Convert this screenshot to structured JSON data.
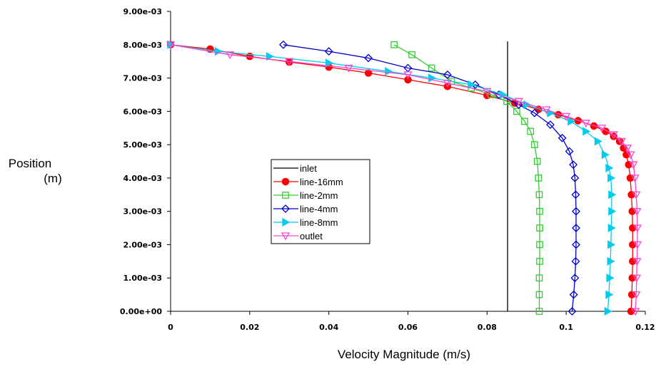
{
  "chart_data": {
    "type": "line",
    "xlabel": "Velocity Magnitude (m/s)",
    "ylabel_line1": "Position",
    "ylabel_line2": "(m)",
    "xlim": [
      0,
      0.12
    ],
    "ylim": [
      0,
      0.009
    ],
    "x_ticks": [
      0,
      0.02,
      0.04,
      0.06,
      0.08,
      0.1,
      0.12
    ],
    "x_tick_labels": [
      "0",
      "0.02",
      "0.04",
      "0.06",
      "0.08",
      "0.1",
      "0.12"
    ],
    "y_ticks": [
      0,
      0.001,
      0.002,
      0.003,
      0.004,
      0.005,
      0.006,
      0.007,
      0.008,
      0.009
    ],
    "y_tick_labels": [
      "0.00e+00",
      "1.00e-03",
      "2.00e-03",
      "3.00e-03",
      "4.00e-03",
      "5.00e-03",
      "6.00e-03",
      "7.00e-03",
      "8.00e-03",
      "9.00e-03"
    ],
    "grid": false,
    "legend_position": "center",
    "series": [
      {
        "name": "inlet",
        "color": "#000000",
        "marker": "none",
        "points": [
          [
            0.0852,
            0
          ],
          [
            0.0852,
            0.0081
          ]
        ]
      },
      {
        "name": "line-16mm",
        "color": "#ff0000",
        "marker": "circle",
        "points": [
          [
            0.0,
            0.008
          ],
          [
            0.01,
            0.00787
          ],
          [
            0.02,
            0.00765
          ],
          [
            0.03,
            0.00748
          ],
          [
            0.04,
            0.00733
          ],
          [
            0.05,
            0.00715
          ],
          [
            0.06,
            0.00695
          ],
          [
            0.07,
            0.00675
          ],
          [
            0.08,
            0.00648
          ],
          [
            0.087,
            0.00625
          ],
          [
            0.093,
            0.00606
          ],
          [
            0.098,
            0.0059
          ],
          [
            0.103,
            0.00572
          ],
          [
            0.107,
            0.00556
          ],
          [
            0.11,
            0.0054
          ],
          [
            0.112,
            0.00525
          ],
          [
            0.1135,
            0.0051
          ],
          [
            0.1145,
            0.0049
          ],
          [
            0.1152,
            0.0047
          ],
          [
            0.1158,
            0.0044
          ],
          [
            0.1162,
            0.004
          ],
          [
            0.1165,
            0.0035
          ],
          [
            0.1167,
            0.003
          ],
          [
            0.1168,
            0.0025
          ],
          [
            0.1168,
            0.002
          ],
          [
            0.1168,
            0.0015
          ],
          [
            0.1167,
            0.001
          ],
          [
            0.1166,
            0.0005
          ],
          [
            0.1164,
            0.0
          ]
        ]
      },
      {
        "name": "line-2mm",
        "color": "#33cc33",
        "marker": "square",
        "points": [
          [
            0.0565,
            0.008
          ],
          [
            0.061,
            0.0077
          ],
          [
            0.066,
            0.0073
          ],
          [
            0.071,
            0.0069
          ],
          [
            0.076,
            0.0067
          ],
          [
            0.081,
            0.0065
          ],
          [
            0.085,
            0.0063
          ],
          [
            0.0875,
            0.006
          ],
          [
            0.0895,
            0.0057
          ],
          [
            0.091,
            0.0054
          ],
          [
            0.092,
            0.005
          ],
          [
            0.0927,
            0.0045
          ],
          [
            0.093,
            0.004
          ],
          [
            0.0932,
            0.0035
          ],
          [
            0.0933,
            0.003
          ],
          [
            0.0933,
            0.0025
          ],
          [
            0.0933,
            0.002
          ],
          [
            0.0933,
            0.0015
          ],
          [
            0.0932,
            0.001
          ],
          [
            0.0932,
            0.0005
          ],
          [
            0.0932,
            0.0
          ]
        ]
      },
      {
        "name": "line-4mm",
        "color": "#0000cc",
        "marker": "diamond",
        "points": [
          [
            0.0285,
            0.008
          ],
          [
            0.04,
            0.0078
          ],
          [
            0.05,
            0.0076
          ],
          [
            0.06,
            0.0073
          ],
          [
            0.07,
            0.0071
          ],
          [
            0.077,
            0.0068
          ],
          [
            0.083,
            0.0065
          ],
          [
            0.088,
            0.0062
          ],
          [
            0.092,
            0.00595
          ],
          [
            0.096,
            0.0056
          ],
          [
            0.099,
            0.0052
          ],
          [
            0.1008,
            0.0048
          ],
          [
            0.1018,
            0.0044
          ],
          [
            0.1022,
            0.004
          ],
          [
            0.1024,
            0.0035
          ],
          [
            0.1025,
            0.003
          ],
          [
            0.1025,
            0.0025
          ],
          [
            0.1025,
            0.002
          ],
          [
            0.1024,
            0.0015
          ],
          [
            0.1022,
            0.001
          ],
          [
            0.1019,
            0.0005
          ],
          [
            0.1015,
            0.0
          ]
        ]
      },
      {
        "name": "line-8mm",
        "color": "#00ccee",
        "marker": "triangle-right",
        "points": [
          [
            0.0,
            0.008
          ],
          [
            0.012,
            0.0078
          ],
          [
            0.025,
            0.00765
          ],
          [
            0.04,
            0.00745
          ],
          [
            0.055,
            0.0072
          ],
          [
            0.066,
            0.007
          ],
          [
            0.076,
            0.0068
          ],
          [
            0.084,
            0.0065
          ],
          [
            0.09,
            0.0062
          ],
          [
            0.096,
            0.00595
          ],
          [
            0.1012,
            0.0057
          ],
          [
            0.105,
            0.0054
          ],
          [
            0.108,
            0.0051
          ],
          [
            0.1098,
            0.0047
          ],
          [
            0.1108,
            0.0043
          ],
          [
            0.1113,
            0.004
          ],
          [
            0.1115,
            0.0035
          ],
          [
            0.1115,
            0.003
          ],
          [
            0.1114,
            0.0025
          ],
          [
            0.1113,
            0.002
          ],
          [
            0.1112,
            0.0015
          ],
          [
            0.111,
            0.001
          ],
          [
            0.1108,
            0.0005
          ],
          [
            0.1105,
            0.0
          ]
        ]
      },
      {
        "name": "outlet",
        "color": "#ff44cc",
        "marker": "triangle-down",
        "points": [
          [
            0.0,
            0.008
          ],
          [
            0.015,
            0.0077
          ],
          [
            0.03,
            0.0075
          ],
          [
            0.045,
            0.0073
          ],
          [
            0.06,
            0.0071
          ],
          [
            0.07,
            0.00685
          ],
          [
            0.08,
            0.0066
          ],
          [
            0.088,
            0.0063
          ],
          [
            0.095,
            0.00605
          ],
          [
            0.1,
            0.00585
          ],
          [
            0.105,
            0.00565
          ],
          [
            0.109,
            0.0055
          ],
          [
            0.112,
            0.0053
          ],
          [
            0.114,
            0.0051
          ],
          [
            0.1155,
            0.0049
          ],
          [
            0.1163,
            0.0047
          ],
          [
            0.117,
            0.0044
          ],
          [
            0.1174,
            0.004
          ],
          [
            0.1177,
            0.0035
          ],
          [
            0.1179,
            0.003
          ],
          [
            0.118,
            0.0025
          ],
          [
            0.118,
            0.002
          ],
          [
            0.1179,
            0.0015
          ],
          [
            0.1178,
            0.001
          ],
          [
            0.1177,
            0.0005
          ],
          [
            0.1175,
            0.0
          ]
        ]
      }
    ]
  }
}
